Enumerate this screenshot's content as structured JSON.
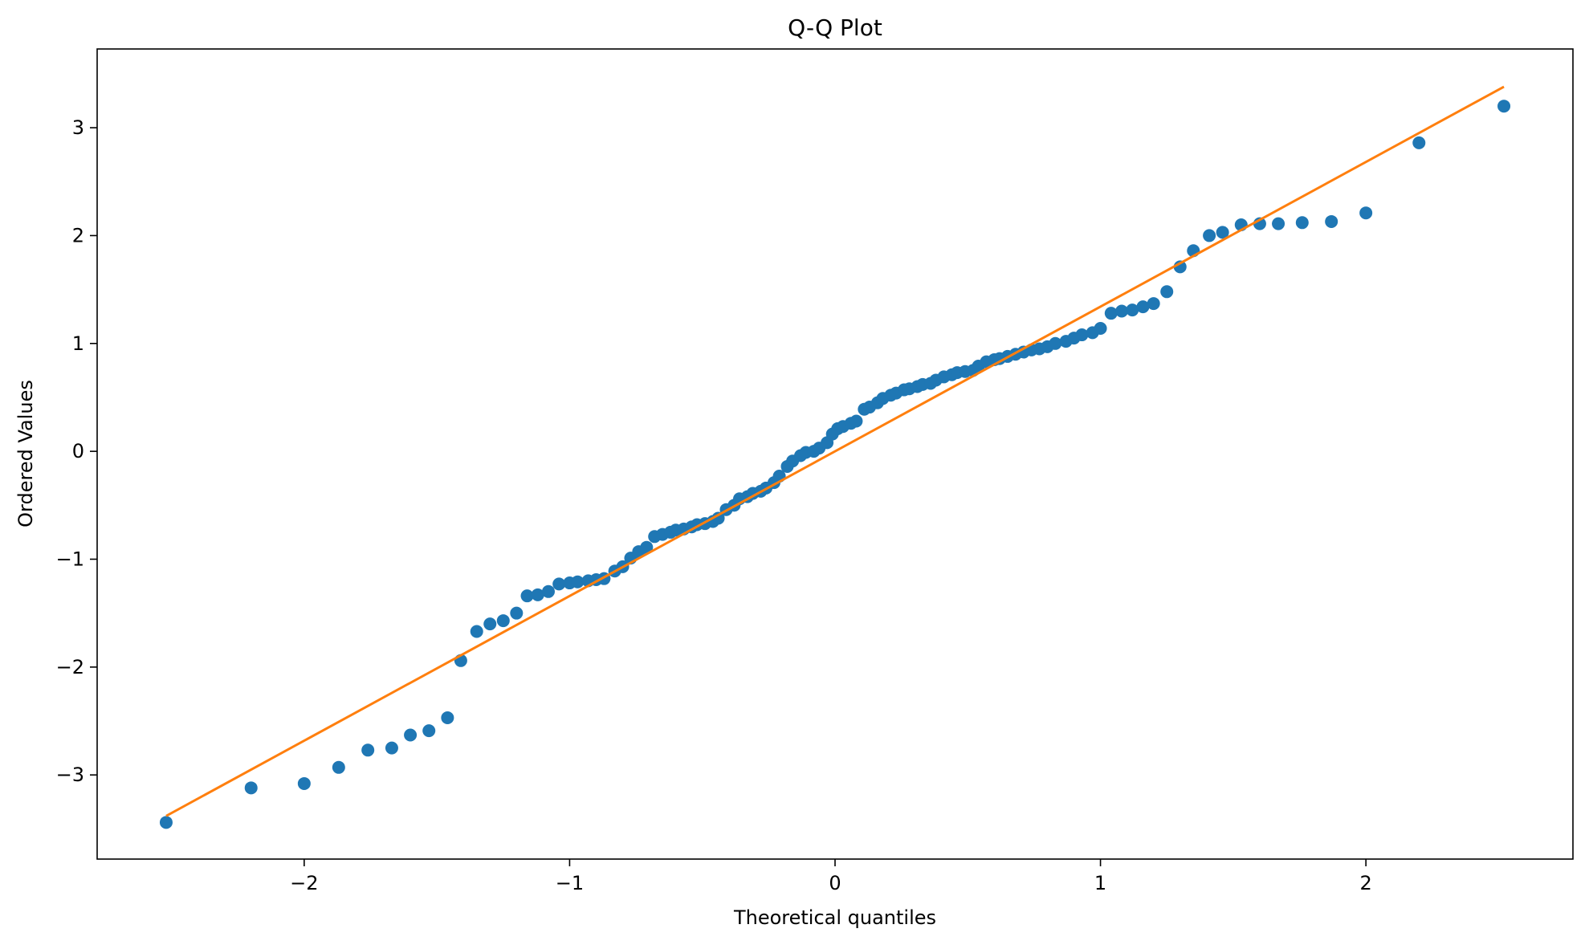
{
  "chart_data": {
    "type": "scatter",
    "title": "Q-Q Plot",
    "xlabel": "Theoretical quantiles",
    "ylabel": "Ordered Values",
    "xlim": [
      -2.78,
      2.78
    ],
    "ylim": [
      -3.78,
      3.73
    ],
    "xticks": [
      -2,
      -1,
      0,
      1,
      2
    ],
    "yticks": [
      -3,
      -2,
      -1,
      0,
      1,
      2,
      3
    ],
    "xtick_labels": [
      "−2",
      "−1",
      "0",
      "1",
      "2"
    ],
    "ytick_labels": [
      "−3",
      "−2",
      "−1",
      "0",
      "1",
      "2",
      "3"
    ],
    "grid": false,
    "colors": {
      "points": "#1f77b4",
      "fit_line": "#ff7f0e"
    },
    "fit_line": {
      "x": [
        -2.52,
        2.52
      ],
      "y": [
        -3.38,
        3.38
      ]
    },
    "points": {
      "x": [
        -2.52,
        -2.2,
        -2.0,
        -1.87,
        -1.76,
        -1.67,
        -1.6,
        -1.53,
        -1.46,
        -1.41,
        -1.35,
        -1.3,
        -1.25,
        -1.2,
        -1.16,
        -1.12,
        -1.08,
        -1.04,
        -1.0,
        -0.97,
        -0.93,
        -0.9,
        -0.87,
        -0.83,
        -0.8,
        -0.77,
        -0.74,
        -0.71,
        -0.68,
        -0.65,
        -0.62,
        -0.6,
        -0.57,
        -0.54,
        -0.52,
        -0.49,
        -0.46,
        -0.44,
        -0.41,
        -0.38,
        -0.36,
        -0.33,
        -0.31,
        -0.28,
        -0.26,
        -0.23,
        -0.21,
        -0.18,
        -0.16,
        -0.13,
        -0.11,
        -0.08,
        -0.06,
        -0.03,
        -0.01,
        0.01,
        0.03,
        0.06,
        0.08,
        0.11,
        0.13,
        0.16,
        0.18,
        0.21,
        0.23,
        0.26,
        0.28,
        0.31,
        0.33,
        0.36,
        0.38,
        0.41,
        0.44,
        0.46,
        0.49,
        0.52,
        0.54,
        0.57,
        0.6,
        0.62,
        0.65,
        0.68,
        0.71,
        0.74,
        0.77,
        0.8,
        0.83,
        0.87,
        0.9,
        0.93,
        0.97,
        1.0,
        1.04,
        1.08,
        1.12,
        1.16,
        1.2,
        1.25,
        1.3,
        1.35,
        1.41,
        1.46,
        1.53,
        1.6,
        1.67,
        1.76,
        1.87,
        2.0,
        2.2,
        2.52
      ],
      "y": [
        -3.44,
        -3.12,
        -3.08,
        -2.93,
        -2.77,
        -2.75,
        -2.63,
        -2.59,
        -2.47,
        -1.94,
        -1.67,
        -1.6,
        -1.57,
        -1.5,
        -1.34,
        -1.33,
        -1.3,
        -1.23,
        -1.22,
        -1.21,
        -1.2,
        -1.19,
        -1.18,
        -1.11,
        -1.07,
        -0.99,
        -0.93,
        -0.89,
        -0.79,
        -0.77,
        -0.75,
        -0.73,
        -0.72,
        -0.7,
        -0.68,
        -0.67,
        -0.65,
        -0.62,
        -0.54,
        -0.5,
        -0.44,
        -0.42,
        -0.39,
        -0.37,
        -0.34,
        -0.29,
        -0.23,
        -0.14,
        -0.09,
        -0.04,
        -0.01,
        0.0,
        0.03,
        0.08,
        0.16,
        0.21,
        0.23,
        0.26,
        0.28,
        0.39,
        0.41,
        0.45,
        0.49,
        0.52,
        0.54,
        0.57,
        0.58,
        0.6,
        0.62,
        0.63,
        0.66,
        0.69,
        0.71,
        0.73,
        0.74,
        0.75,
        0.79,
        0.83,
        0.85,
        0.86,
        0.88,
        0.9,
        0.92,
        0.94,
        0.95,
        0.97,
        1.0,
        1.02,
        1.05,
        1.08,
        1.1,
        1.14,
        1.28,
        1.3,
        1.31,
        1.34,
        1.37,
        1.48,
        1.71,
        1.86,
        2.0,
        2.03,
        2.1,
        2.11,
        2.11,
        2.12,
        2.13,
        2.21,
        2.86,
        3.2
      ]
    }
  }
}
